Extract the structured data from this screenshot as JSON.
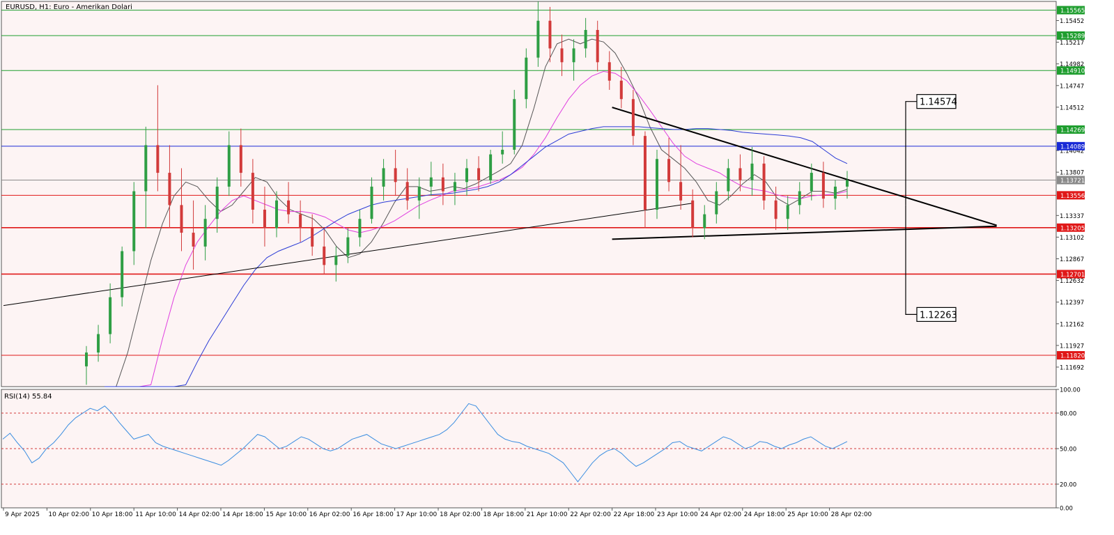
{
  "header": {
    "title": "EURUSD, H1:  Euro - Amerikan Dolari"
  },
  "rsi_panel": {
    "label": "RSI(14) 55.84"
  },
  "colors": {
    "background": "#fdf4f4",
    "bull": "#2e9e44",
    "bear": "#d23a3a",
    "sma_fast": "#555555",
    "sma_mid": "#e040e0",
    "sma_slow": "#2a3bd6",
    "resistance_line": "#1f9e2f",
    "support_line": "#e01818",
    "pivot_line": "#1a2bd6",
    "rsi_line": "#3a8de0"
  },
  "chart_data": [
    {
      "type": "candlestick",
      "symbol": "EURUSD",
      "timeframe": "H1",
      "title": "EURUSD, H1:  Euro - Amerikan Dolari",
      "ylim": [
        1.1148,
        1.1566
      ],
      "y_ticks": [
        1.15452,
        1.15217,
        1.14982,
        1.14747,
        1.14512,
        1.14042,
        1.13807,
        1.13337,
        1.13102,
        1.12867,
        1.12632,
        1.12397,
        1.12162,
        1.11927,
        1.11692
      ],
      "x_labels": [
        "9 Apr 2025",
        "10 Apr 02:00",
        "10 Apr 18:00",
        "11 Apr 10:00",
        "14 Apr 02:00",
        "14 Apr 18:00",
        "15 Apr 10:00",
        "16 Apr 02:00",
        "16 Apr 18:00",
        "17 Apr 10:00",
        "18 Apr 02:00",
        "18 Apr 18:00",
        "21 Apr 10:00",
        "22 Apr 02:00",
        "22 Apr 18:00",
        "23 Apr 10:00",
        "24 Apr 02:00",
        "24 Apr 18:00",
        "25 Apr 10:00",
        "28 Apr 02:00"
      ],
      "horizontal_levels": [
        {
          "price": 1.15565,
          "label": "1.15565",
          "role": "resistance"
        },
        {
          "price": 1.15289,
          "label": "1.15289",
          "role": "resistance"
        },
        {
          "price": 1.1491,
          "label": "1.14910",
          "role": "resistance"
        },
        {
          "price": 1.14269,
          "label": "1.14269",
          "role": "resistance"
        },
        {
          "price": 1.14089,
          "label": "1.14089",
          "role": "pivot"
        },
        {
          "price": 1.13721,
          "label": "1.13721",
          "role": "current"
        },
        {
          "price": 1.13556,
          "label": "1.13556",
          "role": "support"
        },
        {
          "price": 1.13205,
          "label": "1.13205",
          "role": "support"
        },
        {
          "price": 1.12701,
          "label": "1.12701",
          "role": "support"
        },
        {
          "price": 1.1182,
          "label": "1.11820",
          "role": "support"
        }
      ],
      "callouts": [
        {
          "label": "1.14574",
          "price": 1.14574
        },
        {
          "label": "1.12263",
          "price": 1.12263
        }
      ],
      "candles_ohlc": [
        [
          1.117,
          1.1192,
          1.115,
          1.1185
        ],
        [
          1.1185,
          1.1215,
          1.1175,
          1.1205
        ],
        [
          1.1205,
          1.126,
          1.1195,
          1.1245
        ],
        [
          1.1245,
          1.13,
          1.1235,
          1.1295
        ],
        [
          1.1295,
          1.137,
          1.128,
          1.136
        ],
        [
          1.136,
          1.143,
          1.132,
          1.141
        ],
        [
          1.141,
          1.1475,
          1.136,
          1.138
        ],
        [
          1.138,
          1.141,
          1.132,
          1.1345
        ],
        [
          1.1345,
          1.1385,
          1.1295,
          1.1315
        ],
        [
          1.1315,
          1.135,
          1.1275,
          1.13
        ],
        [
          1.13,
          1.1345,
          1.1285,
          1.133
        ],
        [
          1.133,
          1.1375,
          1.1315,
          1.1365
        ],
        [
          1.1365,
          1.1425,
          1.1355,
          1.141
        ],
        [
          1.141,
          1.1428,
          1.1365,
          1.138
        ],
        [
          1.138,
          1.1395,
          1.1325,
          1.134
        ],
        [
          1.134,
          1.1365,
          1.13,
          1.132
        ],
        [
          1.132,
          1.136,
          1.131,
          1.135
        ],
        [
          1.135,
          1.137,
          1.1325,
          1.1335
        ],
        [
          1.1335,
          1.135,
          1.1305,
          1.132
        ],
        [
          1.132,
          1.1335,
          1.129,
          1.13
        ],
        [
          1.13,
          1.1318,
          1.127,
          1.128
        ],
        [
          1.128,
          1.13,
          1.1262,
          1.129
        ],
        [
          1.129,
          1.132,
          1.1282,
          1.131
        ],
        [
          1.131,
          1.134,
          1.13,
          1.133
        ],
        [
          1.133,
          1.1375,
          1.1325,
          1.1365
        ],
        [
          1.1365,
          1.1395,
          1.135,
          1.1385
        ],
        [
          1.1385,
          1.1405,
          1.1355,
          1.137
        ],
        [
          1.137,
          1.1385,
          1.134,
          1.135
        ],
        [
          1.135,
          1.1375,
          1.133,
          1.1365
        ],
        [
          1.1365,
          1.1392,
          1.1355,
          1.1375
        ],
        [
          1.1375,
          1.139,
          1.1345,
          1.136
        ],
        [
          1.136,
          1.138,
          1.1345,
          1.137
        ],
        [
          1.137,
          1.1395,
          1.1355,
          1.1385
        ],
        [
          1.1385,
          1.1398,
          1.136,
          1.1372
        ],
        [
          1.1372,
          1.1405,
          1.1368,
          1.14
        ],
        [
          1.14,
          1.1425,
          1.139,
          1.1405
        ],
        [
          1.1405,
          1.147,
          1.14,
          1.146
        ],
        [
          1.146,
          1.1515,
          1.145,
          1.1505
        ],
        [
          1.1505,
          1.1566,
          1.1495,
          1.1545
        ],
        [
          1.1545,
          1.156,
          1.15,
          1.1515
        ],
        [
          1.1515,
          1.153,
          1.1485,
          1.15
        ],
        [
          1.15,
          1.1525,
          1.148,
          1.1515
        ],
        [
          1.1515,
          1.1548,
          1.1505,
          1.1535
        ],
        [
          1.1535,
          1.1545,
          1.149,
          1.15
        ],
        [
          1.15,
          1.1512,
          1.147,
          1.148
        ],
        [
          1.148,
          1.1495,
          1.145,
          1.146
        ],
        [
          1.146,
          1.147,
          1.141,
          1.142
        ],
        [
          1.142,
          1.1425,
          1.132,
          1.134
        ],
        [
          1.134,
          1.1405,
          1.133,
          1.1395
        ],
        [
          1.1395,
          1.1418,
          1.136,
          1.137
        ],
        [
          1.137,
          1.141,
          1.134,
          1.135
        ],
        [
          1.135,
          1.1362,
          1.131,
          1.132
        ],
        [
          1.132,
          1.1345,
          1.1308,
          1.1335
        ],
        [
          1.1335,
          1.137,
          1.1325,
          1.136
        ],
        [
          1.136,
          1.1395,
          1.135,
          1.1385
        ],
        [
          1.1385,
          1.14,
          1.136,
          1.1372
        ],
        [
          1.1372,
          1.1408,
          1.1355,
          1.139
        ],
        [
          1.139,
          1.1398,
          1.134,
          1.135
        ],
        [
          1.135,
          1.1365,
          1.1318,
          1.133
        ],
        [
          1.133,
          1.1355,
          1.1318,
          1.1345
        ],
        [
          1.1345,
          1.137,
          1.1335,
          1.136
        ],
        [
          1.136,
          1.139,
          1.135,
          1.138
        ],
        [
          1.138,
          1.1392,
          1.1342,
          1.1352
        ],
        [
          1.1352,
          1.1372,
          1.134,
          1.1365
        ],
        [
          1.1365,
          1.1382,
          1.1352,
          1.1372
        ]
      ],
      "sma_fast": [
        1.111,
        1.114,
        1.1185,
        1.1235,
        1.1285,
        1.1325,
        1.1355,
        1.137,
        1.1365,
        1.135,
        1.1338,
        1.1345,
        1.136,
        1.1375,
        1.137,
        1.1352,
        1.134,
        1.1335,
        1.133,
        1.1318,
        1.13,
        1.1288,
        1.1292,
        1.1305,
        1.1325,
        1.1348,
        1.1365,
        1.1365,
        1.136,
        1.1362,
        1.1365,
        1.1363,
        1.1368,
        1.1375,
        1.1382,
        1.139,
        1.141,
        1.145,
        1.1495,
        1.152,
        1.1525,
        1.152,
        1.1525,
        1.1522,
        1.151,
        1.1488,
        1.1462,
        1.143,
        1.1405,
        1.1395,
        1.1385,
        1.137,
        1.135,
        1.1345,
        1.1355,
        1.1368,
        1.1378,
        1.137,
        1.1352,
        1.1345,
        1.1352,
        1.136,
        1.136,
        1.1358,
        1.1362
      ],
      "sma_mid": [
        1.1,
        1.102,
        1.106,
        1.11,
        1.115,
        1.12,
        1.1245,
        1.128,
        1.1305,
        1.1322,
        1.1338,
        1.135,
        1.1355,
        1.135,
        1.1345,
        1.134,
        1.1338,
        1.1338,
        1.1336,
        1.1332,
        1.1325,
        1.1318,
        1.1315,
        1.1318,
        1.1322,
        1.1328,
        1.1336,
        1.1344,
        1.135,
        1.1355,
        1.136,
        1.1362,
        1.1364,
        1.1368,
        1.1372,
        1.1378,
        1.1386,
        1.14,
        1.1418,
        1.144,
        1.146,
        1.1475,
        1.1485,
        1.149,
        1.1488,
        1.148,
        1.1465,
        1.1448,
        1.143,
        1.1412,
        1.1398,
        1.139,
        1.1385,
        1.138,
        1.1372,
        1.1365,
        1.1362,
        1.136,
        1.1356,
        1.1353,
        1.1352,
        1.1355,
        1.1356,
        1.1357,
        1.136
      ],
      "sma_slow": [
        1.095,
        1.097,
        1.1,
        1.103,
        1.106,
        1.109,
        1.112,
        1.115,
        1.1175,
        1.1198,
        1.1218,
        1.1238,
        1.1258,
        1.1275,
        1.1288,
        1.1295,
        1.13,
        1.1305,
        1.1312,
        1.132,
        1.1328,
        1.1335,
        1.134,
        1.1345,
        1.1348,
        1.135,
        1.1352,
        1.1354,
        1.1356,
        1.1357,
        1.1358,
        1.136,
        1.1362,
        1.1365,
        1.137,
        1.1378,
        1.1388,
        1.1398,
        1.1408,
        1.1415,
        1.1422,
        1.1425,
        1.1428,
        1.143,
        1.143,
        1.143,
        1.143,
        1.1429,
        1.1428,
        1.1427,
        1.1427,
        1.1428,
        1.1428,
        1.1427,
        1.1426,
        1.1424,
        1.1423,
        1.1422,
        1.1421,
        1.142,
        1.1418,
        1.1414,
        1.1405,
        1.1396,
        1.139
      ],
      "trendlines": [
        {
          "from": {
            "x": "9 Apr 2025",
            "y": 1.1236
          },
          "to": {
            "x": "21 Apr 10:00",
            "y": 1.1347
          },
          "label": ""
        },
        {
          "from": {
            "x": "22 Apr 18:00",
            "y": 1.1451
          },
          "to": {
            "x": "28 Apr 02:00",
            "y": 1.1323
          },
          "label": ""
        },
        {
          "from": {
            "x": "22 Apr 18:00",
            "y": 1.1308
          },
          "to": {
            "x": "28 Apr 02:00",
            "y": 1.1322
          },
          "label": ""
        }
      ]
    },
    {
      "type": "line",
      "title": "RSI(14) 55.84",
      "ylim": [
        0,
        100
      ],
      "y_ticks": [
        100.0,
        80.0,
        50.0,
        20.0,
        0.0
      ],
      "levels": [
        80,
        50,
        20
      ],
      "values": [
        58,
        63,
        55,
        48,
        38,
        42,
        50,
        55,
        62,
        70,
        76,
        80,
        84,
        82,
        86,
        80,
        72,
        65,
        58,
        60,
        62,
        55,
        52,
        50,
        48,
        46,
        44,
        42,
        40,
        38,
        36,
        40,
        45,
        50,
        56,
        62,
        60,
        55,
        50,
        52,
        56,
        60,
        58,
        54,
        50,
        48,
        50,
        54,
        58,
        60,
        62,
        58,
        54,
        52,
        50,
        52,
        54,
        56,
        58,
        60,
        62,
        66,
        72,
        80,
        88,
        86,
        78,
        70,
        62,
        58,
        56,
        55,
        52,
        50,
        48,
        46,
        42,
        38,
        30,
        22,
        30,
        38,
        44,
        48,
        50,
        46,
        40,
        35,
        38,
        42,
        46,
        50,
        55,
        56,
        52,
        50,
        48,
        52,
        56,
        60,
        58,
        54,
        50,
        52,
        56,
        55,
        52,
        50,
        53,
        55,
        58,
        60,
        56,
        52,
        50,
        53,
        56
      ]
    }
  ]
}
